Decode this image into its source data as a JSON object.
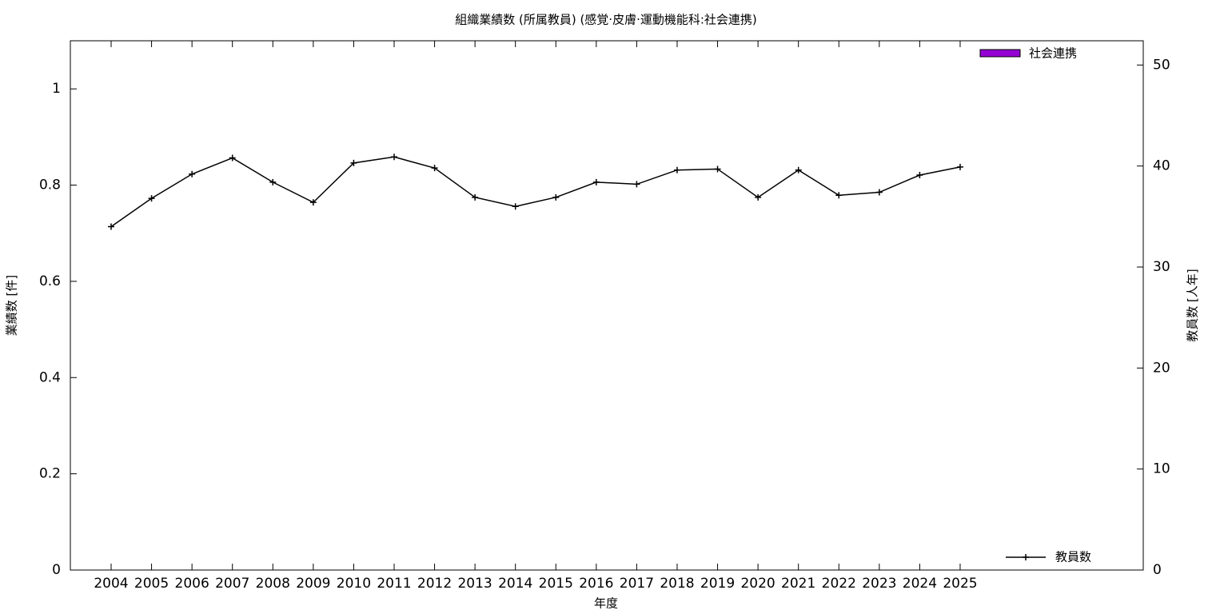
{
  "chart_data": {
    "type": "bar+line",
    "title": "組織業績数 (所属教員) (感覚·皮膚·運動機能科:社会連携)",
    "xlabel": "年度",
    "ylabel": "業績数 [件]",
    "y2label": "教員数 [人年]",
    "categories": [
      "2004",
      "2005",
      "2006",
      "2007",
      "2008",
      "2009",
      "2010",
      "2011",
      "2012",
      "2013",
      "2014",
      "2015",
      "2016",
      "2017",
      "2018",
      "2019",
      "2020",
      "2021",
      "2022",
      "2023",
      "2024",
      "2025"
    ],
    "series": [
      {
        "name": "社会連携",
        "type": "bar",
        "color": "#9400d3",
        "values": [
          0,
          0,
          0,
          0,
          0,
          0,
          0,
          0,
          0,
          0,
          0,
          0,
          0,
          0,
          0,
          0,
          0,
          0,
          0,
          0,
          0,
          0
        ]
      },
      {
        "name": "教員数",
        "type": "line",
        "axis": "y2",
        "color": "#000000",
        "values": [
          34.0,
          36.8,
          39.2,
          40.8,
          38.4,
          36.4,
          40.3,
          40.9,
          39.8,
          36.9,
          36.0,
          36.9,
          38.4,
          38.2,
          39.6,
          39.7,
          36.9,
          39.6,
          37.1,
          37.4,
          39.1,
          39.9
        ]
      }
    ],
    "ylim": [
      0,
      1.1
    ],
    "yticks": [
      0,
      0.2,
      0.4,
      0.6,
      0.8,
      1
    ],
    "y2lim": [
      0,
      52.4
    ],
    "y2ticks": [
      0,
      10,
      20,
      30,
      40,
      50
    ],
    "legend": [
      "top-right",
      "bottom-right"
    ]
  }
}
